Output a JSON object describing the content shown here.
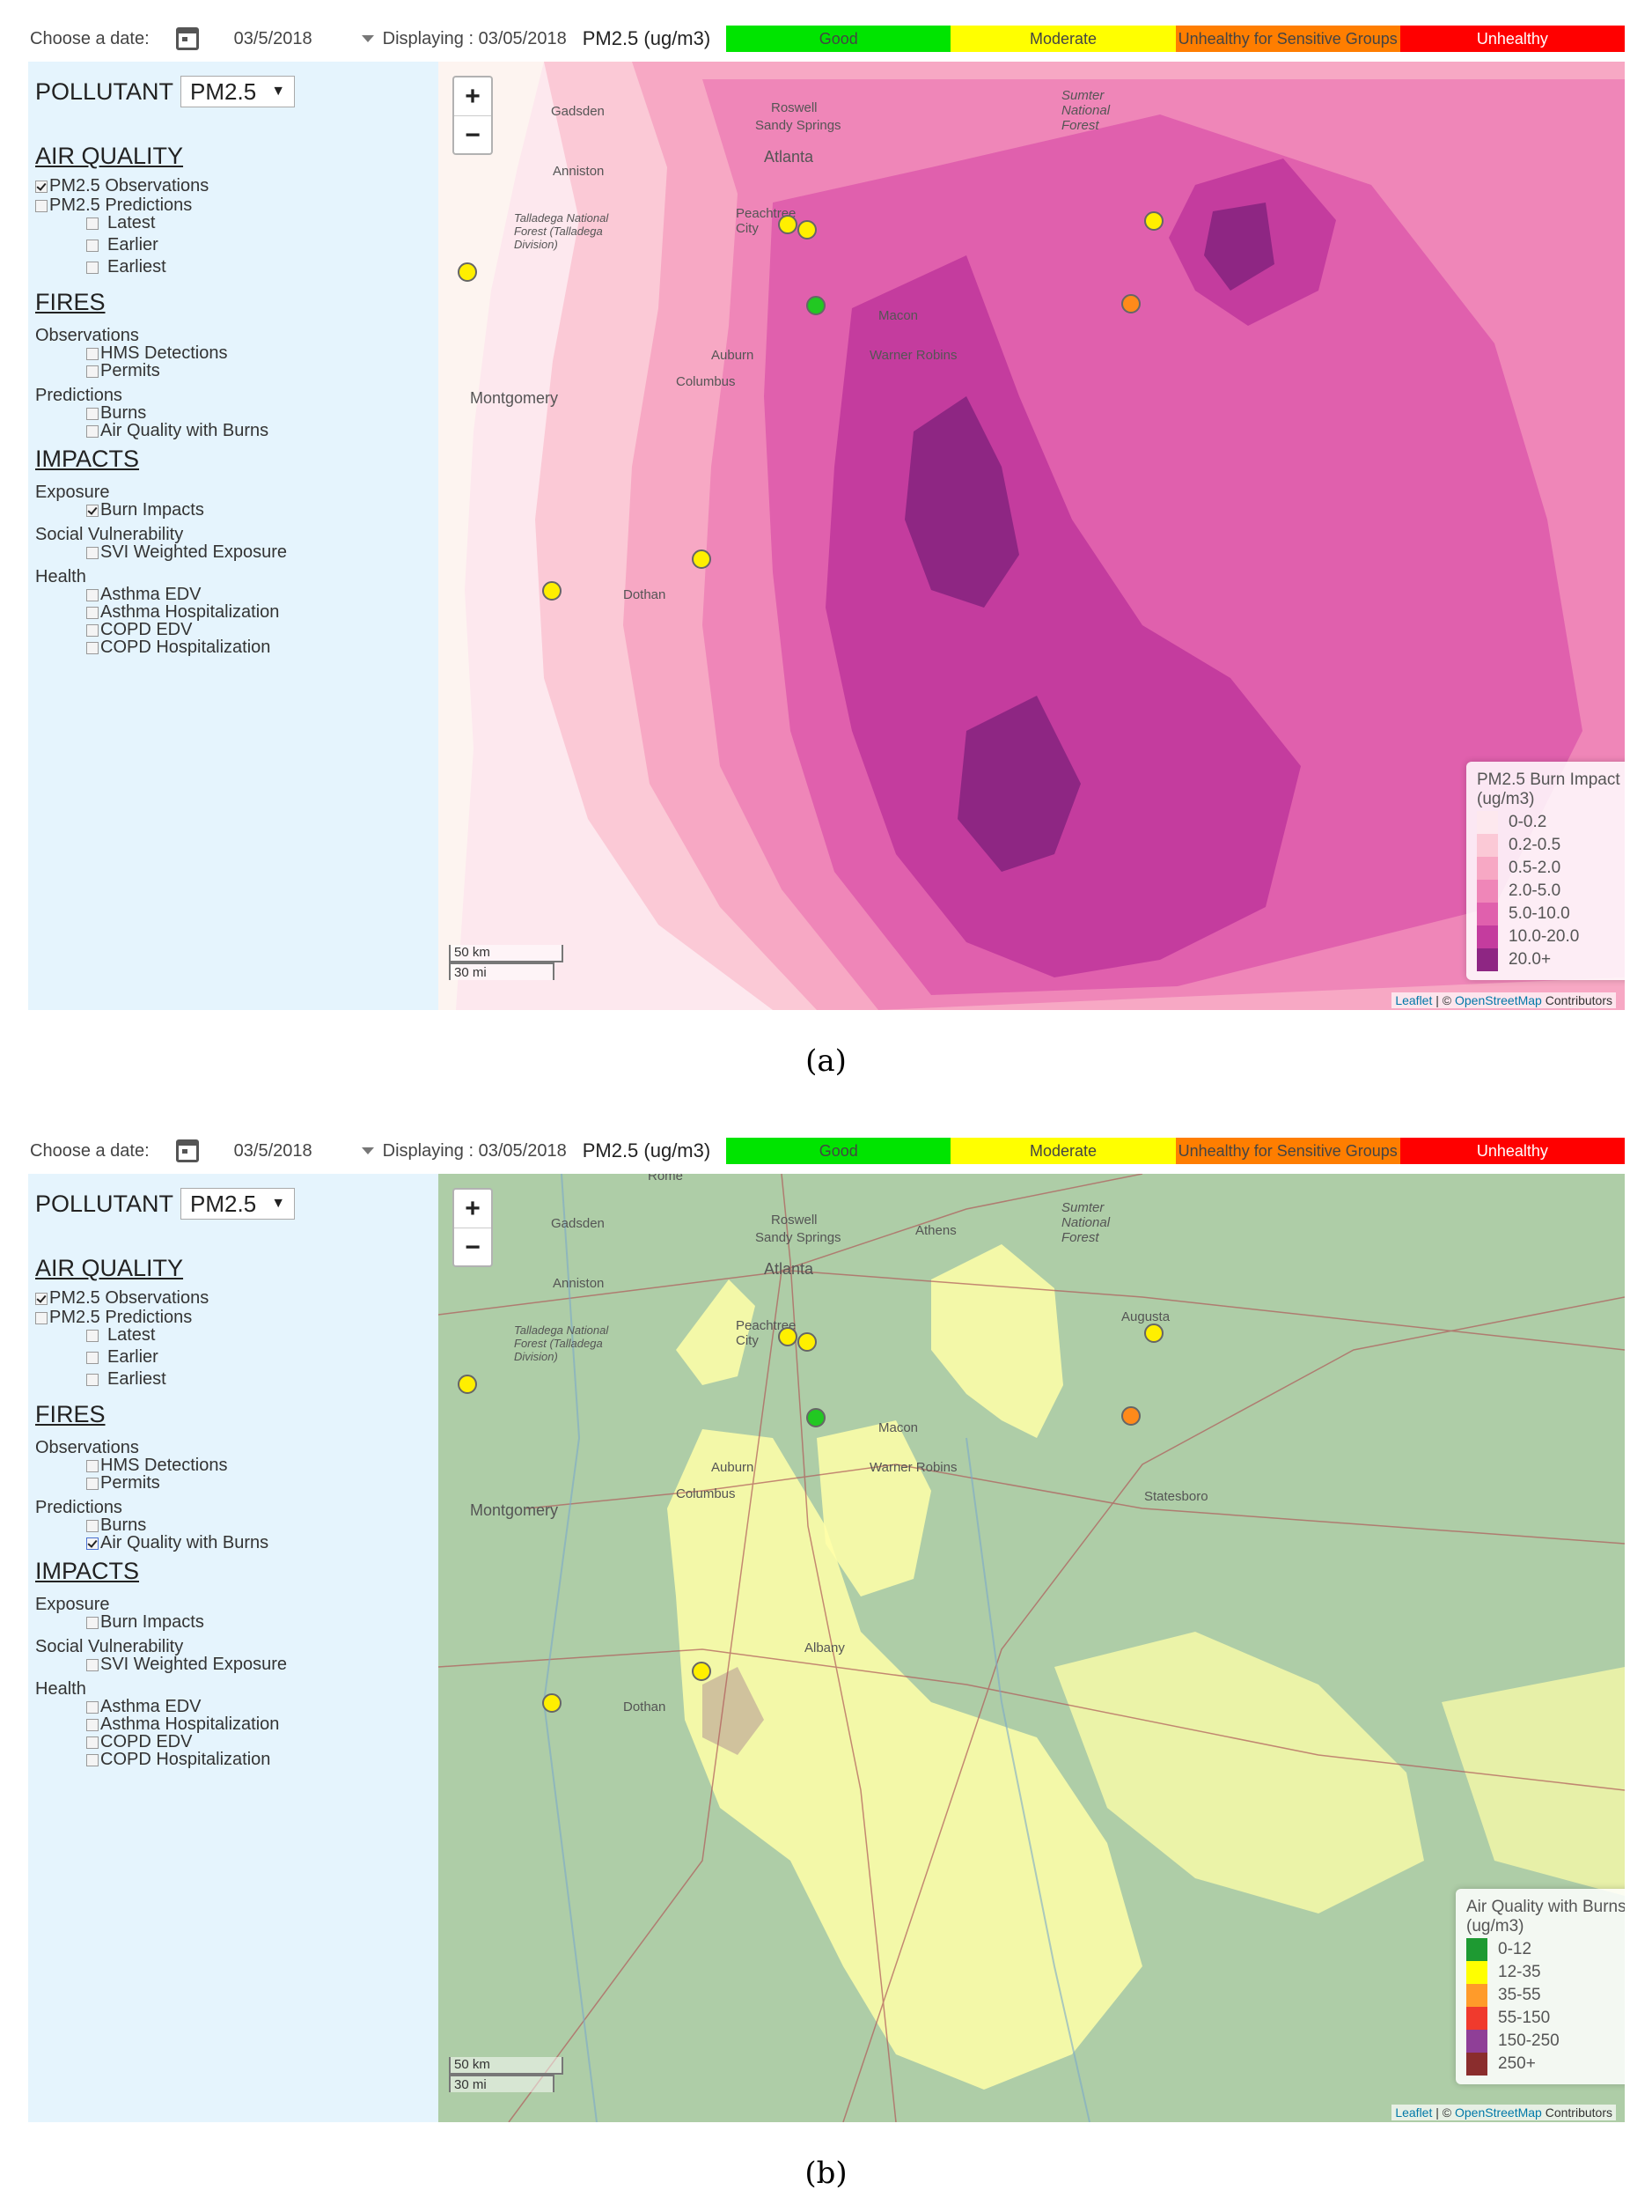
{
  "panels": [
    {
      "id": "a",
      "caption": "(a)",
      "toolbar": {
        "date_label": "Choose a date:",
        "date_value": "03/5/2018",
        "displaying": "Displaying : 03/05/2018",
        "unit": "PM2.5 (ug/m3)",
        "scale": [
          {
            "label": "Good",
            "color": "#00e400",
            "text_color": "#333333"
          },
          {
            "label": "Moderate",
            "color": "#ffff00",
            "text_color": "#333333"
          },
          {
            "label": "Unhealthy for Sensitive Groups",
            "color": "#ff7e00",
            "text_color": "#333333"
          },
          {
            "label": "Unhealthy",
            "color": "#ff0000",
            "text_color": "#ffffff"
          }
        ]
      },
      "sidebar": {
        "pollutant_label": "POLLUTANT",
        "pollutant_value": "PM2.5",
        "air_quality": {
          "title": "AIR QUALITY",
          "observations": "PM2.5 Observations",
          "predictions": "PM2.5 Predictions",
          "latest": "Latest",
          "earlier": "Earlier",
          "earliest": "Earliest"
        },
        "fires": {
          "title": "FIRES",
          "observations_group": "Observations",
          "hms": "HMS Detections",
          "permits": "Permits",
          "predictions_group": "Predictions",
          "burns": "Burns",
          "aq_burns": "Air Quality with Burns"
        },
        "impacts": {
          "title": "IMPACTS",
          "exposure_group": "Exposure",
          "burn_impacts": "Burn Impacts",
          "svi_group": "Social Vulnerability",
          "svi": "SVI Weighted Exposure",
          "health_group": "Health",
          "asthma_edv": "Asthma EDV",
          "asthma_hosp": "Asthma Hospitalization",
          "copd_edv": "COPD EDV",
          "copd_hosp": "COPD Hospitalization"
        },
        "checked": [
          "pm25_obs",
          "burn_impacts"
        ]
      },
      "map": {
        "zoom_in": "+",
        "zoom_out": "−",
        "scale_km": "50 km",
        "scale_mi": "30 mi",
        "attribution_leaflet": "Leaflet",
        "attribution_sep": " | © ",
        "attribution_osm": "OpenStreetMap",
        "attribution_tail": " Contributors",
        "places": [
          "Gadsden",
          "Roswell",
          "Sandy Springs",
          "Atlanta",
          "Anniston",
          "Peachtree City",
          "Talladega National Forest (Talladega Division)",
          "Auburn",
          "Columbus",
          "Montgomery",
          "Warner Robins",
          "Macon",
          "Sumter National Forest",
          "Dothan"
        ],
        "legend": {
          "title": "PM2.5 Burn Impact",
          "unit": "(ug/m3)",
          "items": [
            {
              "label": "0-0.2",
              "color": "#fde8ee"
            },
            {
              "label": "0.2-0.5",
              "color": "#fbc9d6"
            },
            {
              "label": "0.5-2.0",
              "color": "#f7a8c4"
            },
            {
              "label": "2.0-5.0",
              "color": "#ef86b8"
            },
            {
              "label": "5.0-10.0",
              "color": "#e060ad"
            },
            {
              "label": "10.0-20.0",
              "color": "#c43c9e"
            },
            {
              "label": "20.0+",
              "color": "#8e2683"
            }
          ]
        }
      }
    },
    {
      "id": "b",
      "caption": "(b)",
      "toolbar": {
        "date_label": "Choose a date:",
        "date_value": "03/5/2018",
        "displaying": "Displaying : 03/05/2018",
        "unit": "PM2.5 (ug/m3)",
        "scale": [
          {
            "label": "Good",
            "color": "#00e400",
            "text_color": "#333333"
          },
          {
            "label": "Moderate",
            "color": "#ffff00",
            "text_color": "#333333"
          },
          {
            "label": "Unhealthy for Sensitive Groups",
            "color": "#ff7e00",
            "text_color": "#333333"
          },
          {
            "label": "Unhealthy",
            "color": "#ff0000",
            "text_color": "#ffffff"
          }
        ]
      },
      "sidebar": {
        "pollutant_label": "POLLUTANT",
        "pollutant_value": "PM2.5",
        "air_quality": {
          "title": "AIR QUALITY",
          "observations": "PM2.5 Observations",
          "predictions": "PM2.5 Predictions",
          "latest": "Latest",
          "earlier": "Earlier",
          "earliest": "Earliest"
        },
        "fires": {
          "title": "FIRES",
          "observations_group": "Observations",
          "hms": "HMS Detections",
          "permits": "Permits",
          "predictions_group": "Predictions",
          "burns": "Burns",
          "aq_burns": "Air Quality with Burns"
        },
        "impacts": {
          "title": "IMPACTS",
          "exposure_group": "Exposure",
          "burn_impacts": "Burn Impacts",
          "svi_group": "Social Vulnerability",
          "svi": "SVI Weighted Exposure",
          "health_group": "Health",
          "asthma_edv": "Asthma EDV",
          "asthma_hosp": "Asthma Hospitalization",
          "copd_edv": "COPD EDV",
          "copd_hosp": "COPD Hospitalization"
        },
        "checked": [
          "pm25_obs",
          "aq_burns"
        ]
      },
      "map": {
        "zoom_in": "+",
        "zoom_out": "−",
        "scale_km": "50 km",
        "scale_mi": "30 mi",
        "attribution_leaflet": "Leaflet",
        "attribution_sep": " | © ",
        "attribution_osm": "OpenStreetMap",
        "attribution_tail": " Contributors",
        "places": [
          "Rome",
          "Gadsden",
          "Roswell",
          "Sandy Springs",
          "Athens",
          "Atlanta",
          "Anniston",
          "Peachtree City",
          "Talladega National Forest (Talladega Division)",
          "Auburn",
          "Columbus",
          "Montgomery",
          "Macon",
          "Warner Robins",
          "Augusta",
          "Sumter National Forest",
          "Statesboro",
          "Albany",
          "Dothan"
        ],
        "legend": {
          "title": "Air Quality with Burns",
          "unit": "(ug/m3)",
          "items": [
            {
              "label": "0-12",
              "color": "#1e9a32"
            },
            {
              "label": "12-35",
              "color": "#ffff00"
            },
            {
              "label": "35-55",
              "color": "#ff9b2a"
            },
            {
              "label": "55-150",
              "color": "#f03a2d"
            },
            {
              "label": "150-250",
              "color": "#8f3f97"
            },
            {
              "label": "250+",
              "color": "#8a2d2d"
            }
          ]
        }
      }
    }
  ]
}
